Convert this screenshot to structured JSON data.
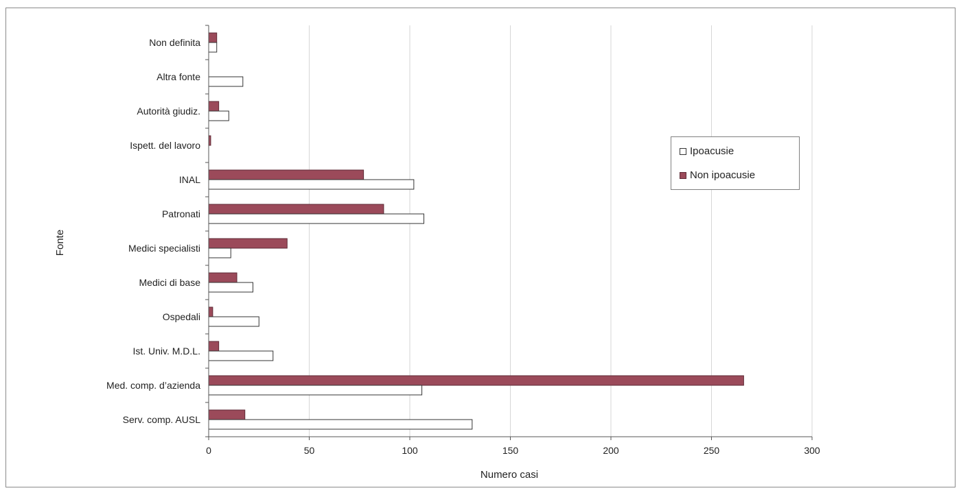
{
  "chart_data": {
    "type": "bar",
    "orientation": "horizontal",
    "categories": [
      "Serv. comp. AUSL",
      "Med. comp. d’azienda",
      "Ist. Univ. M.D.L.",
      "Ospedali",
      "Medici di base",
      "Medici specialisti",
      "Patronati",
      "INAL",
      "Ispett. del lavoro",
      "Autorità giudiz.",
      "Altra fonte",
      "Non definita"
    ],
    "series": [
      {
        "name": "Ipoacusie",
        "color": "#ffffff",
        "values": [
          131,
          106,
          32,
          25,
          22,
          11,
          107,
          102,
          0,
          10,
          17,
          4
        ]
      },
      {
        "name": "Non ipoacusie",
        "color": "#9b4a5a",
        "values": [
          18,
          266,
          5,
          2,
          14,
          39,
          87,
          77,
          1,
          5,
          0,
          4
        ]
      }
    ],
    "xlabel": "Numero casi",
    "ylabel": "Fonte",
    "xlim": [
      0,
      300
    ],
    "xticks": [
      "0",
      "50",
      "100",
      "150",
      "200",
      "250",
      "300"
    ],
    "grid": "vertical",
    "legend_position": "right"
  }
}
